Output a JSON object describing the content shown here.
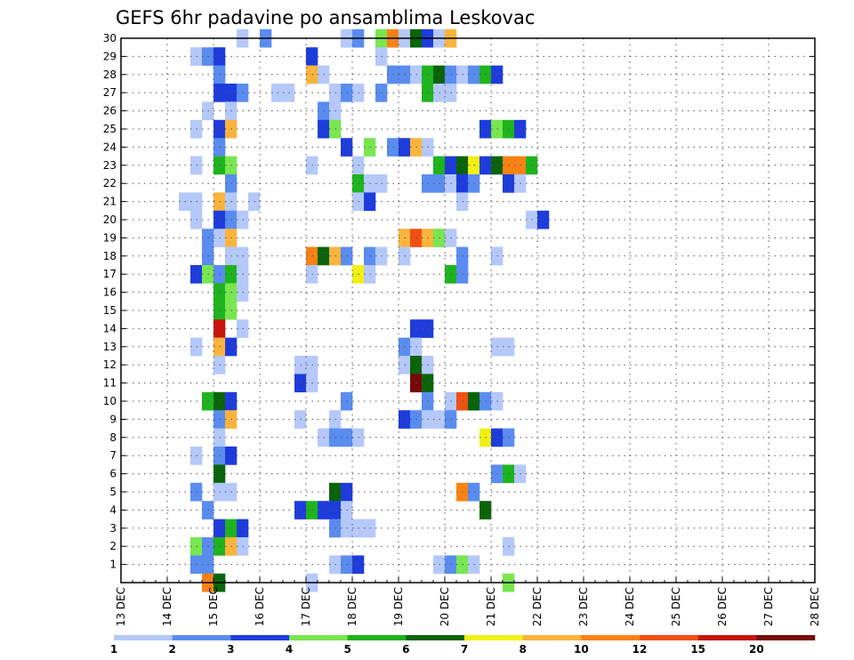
{
  "chart_data": {
    "type": "heatmap",
    "title": "GEFS 6hr padavine po ansamblima Leskovac",
    "xlabel": "",
    "ylabel": "",
    "x_ticks": [
      "13 DEC",
      "14 DEC",
      "15 DEC",
      "16 DEC",
      "17 DEC",
      "18 DEC",
      "19 DEC",
      "20 DEC",
      "21 DEC",
      "22 DEC",
      "23 DEC",
      "24 DEC",
      "25 DEC",
      "26 DEC",
      "27 DEC",
      "28 DEC"
    ],
    "y_ticks": [
      1,
      2,
      3,
      4,
      5,
      6,
      7,
      8,
      9,
      10,
      11,
      12,
      13,
      14,
      15,
      16,
      17,
      18,
      19,
      20,
      21,
      22,
      23,
      24,
      25,
      26,
      27,
      28,
      29,
      30
    ],
    "xlim": [
      "13 DEC 00Z",
      "28 DEC 00Z"
    ],
    "ylim": [
      0,
      30
    ],
    "x_step": "6hr",
    "grid": true,
    "legend_position": "bottom",
    "color_bins": [
      {
        "min": 1,
        "max": 2,
        "color": "#b4c8fa"
      },
      {
        "min": 2,
        "max": 3,
        "color": "#5a8cf0"
      },
      {
        "min": 3,
        "max": 4,
        "color": "#1e3cdc"
      },
      {
        "min": 4,
        "max": 5,
        "color": "#78e650"
      },
      {
        "min": 5,
        "max": 6,
        "color": "#1eb41e"
      },
      {
        "min": 6,
        "max": 7,
        "color": "#0a640a"
      },
      {
        "min": 7,
        "max": 8,
        "color": "#f0f014"
      },
      {
        "min": 8,
        "max": 10,
        "color": "#fab43c"
      },
      {
        "min": 10,
        "max": 12,
        "color": "#fa8214"
      },
      {
        "min": 12,
        "max": 15,
        "color": "#f05014"
      },
      {
        "min": 15,
        "max": 20,
        "color": "#c8140a"
      },
      {
        "min": 20,
        "max": null,
        "color": "#780a0a"
      }
    ],
    "legend_labels": [
      "1",
      "2",
      "3",
      "4",
      "5",
      "6",
      "7",
      "8",
      "10",
      "12",
      "15",
      "20"
    ],
    "cells": [
      [
        30,
        10,
        1
      ],
      [
        30,
        12,
        2
      ],
      [
        30,
        19,
        1
      ],
      [
        30,
        20,
        2
      ],
      [
        30,
        22,
        4
      ],
      [
        30,
        23,
        10
      ],
      [
        30,
        24,
        1
      ],
      [
        30,
        25,
        6
      ],
      [
        30,
        26,
        3
      ],
      [
        30,
        27,
        1
      ],
      [
        30,
        28,
        8
      ],
      [
        29,
        6,
        1
      ],
      [
        29,
        7,
        2
      ],
      [
        29,
        8,
        3
      ],
      [
        29,
        16,
        3
      ],
      [
        29,
        22,
        1
      ],
      [
        28,
        8,
        2
      ],
      [
        28,
        16,
        8
      ],
      [
        28,
        17,
        1
      ],
      [
        28,
        23,
        2
      ],
      [
        28,
        24,
        2
      ],
      [
        28,
        25,
        1
      ],
      [
        28,
        26,
        5
      ],
      [
        28,
        27,
        6
      ],
      [
        28,
        28,
        2
      ],
      [
        28,
        29,
        1
      ],
      [
        28,
        30,
        2
      ],
      [
        28,
        31,
        5
      ],
      [
        28,
        32,
        3
      ],
      [
        27,
        8,
        3
      ],
      [
        27,
        9,
        3
      ],
      [
        27,
        10,
        2
      ],
      [
        27,
        13,
        1
      ],
      [
        27,
        14,
        1
      ],
      [
        27,
        18,
        1
      ],
      [
        27,
        19,
        2
      ],
      [
        27,
        20,
        1
      ],
      [
        27,
        22,
        2
      ],
      [
        27,
        26,
        5
      ],
      [
        27,
        27,
        1
      ],
      [
        27,
        28,
        1
      ],
      [
        26,
        7,
        1
      ],
      [
        26,
        9,
        1
      ],
      [
        26,
        17,
        2
      ],
      [
        26,
        18,
        1
      ],
      [
        25,
        6,
        1
      ],
      [
        25,
        8,
        3
      ],
      [
        25,
        9,
        8
      ],
      [
        25,
        17,
        3
      ],
      [
        25,
        18,
        4
      ],
      [
        25,
        31,
        3
      ],
      [
        25,
        32,
        4
      ],
      [
        25,
        33,
        5
      ],
      [
        25,
        34,
        3
      ],
      [
        24,
        8,
        2
      ],
      [
        24,
        19,
        3
      ],
      [
        24,
        21,
        4
      ],
      [
        24,
        23,
        2
      ],
      [
        24,
        24,
        3
      ],
      [
        24,
        25,
        8
      ],
      [
        24,
        26,
        1
      ],
      [
        23,
        6,
        1
      ],
      [
        23,
        8,
        5
      ],
      [
        23,
        9,
        4
      ],
      [
        23,
        16,
        1
      ],
      [
        23,
        20,
        1
      ],
      [
        23,
        27,
        5
      ],
      [
        23,
        28,
        3
      ],
      [
        23,
        29,
        6
      ],
      [
        23,
        30,
        7
      ],
      [
        23,
        31,
        3
      ],
      [
        23,
        32,
        6
      ],
      [
        23,
        33,
        10
      ],
      [
        23,
        34,
        10
      ],
      [
        23,
        35,
        5
      ],
      [
        22,
        9,
        2
      ],
      [
        22,
        20,
        5
      ],
      [
        22,
        21,
        1
      ],
      [
        22,
        22,
        1
      ],
      [
        22,
        26,
        2
      ],
      [
        22,
        27,
        2
      ],
      [
        22,
        28,
        1
      ],
      [
        22,
        29,
        3
      ],
      [
        22,
        30,
        2
      ],
      [
        22,
        33,
        3
      ],
      [
        22,
        34,
        1
      ],
      [
        21,
        5,
        1
      ],
      [
        21,
        6,
        1
      ],
      [
        21,
        8,
        8
      ],
      [
        21,
        9,
        1
      ],
      [
        21,
        11,
        1
      ],
      [
        21,
        20,
        1
      ],
      [
        21,
        21,
        3
      ],
      [
        21,
        29,
        1
      ],
      [
        20,
        6,
        1
      ],
      [
        20,
        8,
        3
      ],
      [
        20,
        9,
        2
      ],
      [
        20,
        10,
        1
      ],
      [
        20,
        35,
        1
      ],
      [
        20,
        36,
        3
      ],
      [
        19,
        7,
        2
      ],
      [
        19,
        8,
        1
      ],
      [
        19,
        9,
        8
      ],
      [
        19,
        24,
        8
      ],
      [
        19,
        25,
        12
      ],
      [
        19,
        26,
        8
      ],
      [
        19,
        27,
        4
      ],
      [
        19,
        28,
        1
      ],
      [
        18,
        7,
        2
      ],
      [
        18,
        9,
        1
      ],
      [
        18,
        10,
        1
      ],
      [
        18,
        16,
        10
      ],
      [
        18,
        17,
        6
      ],
      [
        18,
        18,
        8
      ],
      [
        18,
        19,
        2
      ],
      [
        18,
        21,
        2
      ],
      [
        18,
        22,
        1
      ],
      [
        18,
        24,
        1
      ],
      [
        18,
        29,
        2
      ],
      [
        18,
        32,
        1
      ],
      [
        17,
        6,
        3
      ],
      [
        17,
        7,
        4
      ],
      [
        17,
        8,
        2
      ],
      [
        17,
        9,
        5
      ],
      [
        17,
        10,
        1
      ],
      [
        17,
        16,
        1
      ],
      [
        17,
        20,
        7
      ],
      [
        17,
        21,
        1
      ],
      [
        17,
        28,
        5
      ],
      [
        17,
        29,
        2
      ],
      [
        16,
        8,
        5
      ],
      [
        16,
        9,
        4
      ],
      [
        16,
        10,
        1
      ],
      [
        15,
        8,
        5
      ],
      [
        15,
        9,
        4
      ],
      [
        14,
        8,
        15
      ],
      [
        14,
        10,
        1
      ],
      [
        14,
        25,
        3
      ],
      [
        14,
        26,
        3
      ],
      [
        13,
        6,
        1
      ],
      [
        13,
        8,
        8
      ],
      [
        13,
        9,
        3
      ],
      [
        13,
        24,
        2
      ],
      [
        13,
        25,
        1
      ],
      [
        13,
        32,
        1
      ],
      [
        13,
        33,
        1
      ],
      [
        12,
        8,
        1
      ],
      [
        12,
        15,
        1
      ],
      [
        12,
        16,
        1
      ],
      [
        12,
        24,
        1
      ],
      [
        12,
        25,
        6
      ],
      [
        12,
        26,
        1
      ],
      [
        11,
        15,
        3
      ],
      [
        11,
        16,
        1
      ],
      [
        11,
        25,
        20
      ],
      [
        11,
        26,
        6
      ],
      [
        10,
        7,
        5
      ],
      [
        10,
        8,
        6
      ],
      [
        10,
        9,
        3
      ],
      [
        10,
        19,
        2
      ],
      [
        10,
        26,
        2
      ],
      [
        10,
        28,
        1
      ],
      [
        10,
        29,
        12
      ],
      [
        10,
        30,
        6
      ],
      [
        10,
        31,
        2
      ],
      [
        10,
        32,
        1
      ],
      [
        9,
        8,
        2
      ],
      [
        9,
        9,
        8
      ],
      [
        9,
        15,
        1
      ],
      [
        9,
        18,
        1
      ],
      [
        9,
        24,
        3
      ],
      [
        9,
        25,
        2
      ],
      [
        9,
        26,
        1
      ],
      [
        9,
        27,
        1
      ],
      [
        9,
        28,
        2
      ],
      [
        8,
        8,
        1
      ],
      [
        8,
        17,
        1
      ],
      [
        8,
        18,
        2
      ],
      [
        8,
        19,
        2
      ],
      [
        8,
        20,
        1
      ],
      [
        8,
        31,
        7
      ],
      [
        8,
        32,
        3
      ],
      [
        8,
        33,
        2
      ],
      [
        7,
        6,
        1
      ],
      [
        7,
        8,
        2
      ],
      [
        7,
        9,
        3
      ],
      [
        6,
        8,
        6
      ],
      [
        6,
        32,
        2
      ],
      [
        6,
        33,
        5
      ],
      [
        6,
        34,
        1
      ],
      [
        5,
        6,
        2
      ],
      [
        5,
        8,
        1
      ],
      [
        5,
        9,
        1
      ],
      [
        5,
        18,
        6
      ],
      [
        5,
        19,
        3
      ],
      [
        5,
        29,
        10
      ],
      [
        5,
        30,
        2
      ],
      [
        4,
        7,
        2
      ],
      [
        4,
        15,
        3
      ],
      [
        4,
        16,
        5
      ],
      [
        4,
        17,
        3
      ],
      [
        4,
        18,
        3
      ],
      [
        4,
        19,
        1
      ],
      [
        4,
        31,
        6
      ],
      [
        3,
        8,
        3
      ],
      [
        3,
        9,
        5
      ],
      [
        3,
        10,
        3
      ],
      [
        3,
        18,
        2
      ],
      [
        3,
        19,
        1
      ],
      [
        3,
        20,
        1
      ],
      [
        3,
        21,
        1
      ],
      [
        2,
        6,
        4
      ],
      [
        2,
        7,
        2
      ],
      [
        2,
        8,
        5
      ],
      [
        2,
        9,
        8
      ],
      [
        2,
        10,
        1
      ],
      [
        2,
        33,
        1
      ],
      [
        1,
        6,
        2
      ],
      [
        1,
        7,
        2
      ],
      [
        1,
        18,
        1
      ],
      [
        1,
        19,
        2
      ],
      [
        1,
        20,
        3
      ],
      [
        1,
        27,
        1
      ],
      [
        1,
        28,
        2
      ],
      [
        1,
        29,
        4
      ],
      [
        1,
        30,
        1
      ],
      [
        0,
        7,
        10
      ],
      [
        0,
        8,
        6
      ],
      [
        0,
        16,
        1
      ],
      [
        0,
        33,
        4
      ]
    ]
  }
}
